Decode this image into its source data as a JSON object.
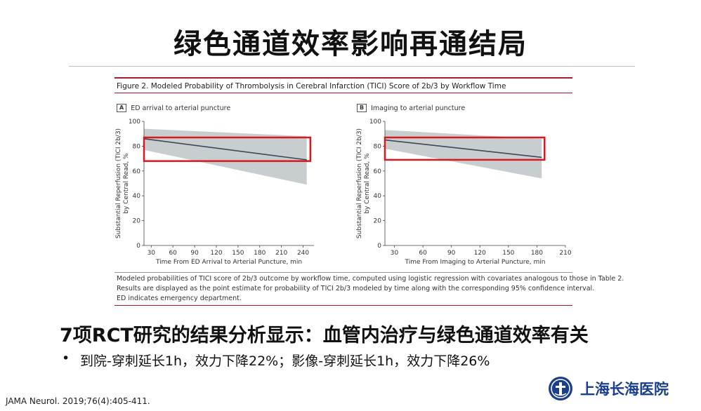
{
  "slide": {
    "title": "绿色通道效率影响再通结局",
    "headline": "7项RCT研究的结果分析显示：血管内治疗与绿色通道效率有关",
    "bullet_marker": "•",
    "bullet": "到院-穿刺延长1h，效力下降22%；影像-穿刺延长1h，效力下降26%",
    "citation": "JAMA Neurol. 2019;76(4):405-411.",
    "hospital_name": "上海长海医院"
  },
  "figure": {
    "caption": "Figure 2. Modeled Probability of Thrombolysis in Cerebral Infarction (TICI) Score of 2b/3 by Workflow Time",
    "notes": [
      "Modeled probabilities of TICI score of 2b/3 outcome by workflow time, computed using logistic regression with covariates analogous to those in Table 2.",
      "Results are displayed as the point estimate for probability of TICI 2b/3 modeled by time along with the corresponding 95% confidence interval.",
      "ED indicates emergency department."
    ]
  },
  "chart_data": [
    {
      "type": "line",
      "panel_letter": "A",
      "panel_title": "ED arrival to arterial puncture",
      "xlabel": "Time From ED Arrival to Arterial Puncture, min",
      "ylabel": "Substantial Reperfusion (TICI 2b/3) by Central Read, %",
      "x_ticks": [
        30,
        60,
        90,
        120,
        150,
        180,
        210,
        240
      ],
      "x_tick_labels": [
        "30",
        "60",
        "90",
        "120",
        "150",
        "180",
        "210",
        "240"
      ],
      "xlim": [
        20,
        255
      ],
      "y_ticks": [
        0,
        20,
        40,
        60,
        80,
        100
      ],
      "ylim": [
        0,
        100
      ],
      "x": [
        20,
        245
      ],
      "y": [
        86,
        69
      ],
      "ci_lower": [
        77,
        49
      ],
      "ci_upper": [
        94,
        88
      ],
      "highlight_box": {
        "x_range": [
          20,
          250
        ],
        "y_range": [
          68,
          87
        ],
        "color": "#d71920"
      },
      "line_color": "#3c4a55",
      "ci_color": "#c8cdd0"
    },
    {
      "type": "line",
      "panel_letter": "B",
      "panel_title": "Imaging to arterial puncture",
      "xlabel": "Time From Imaging to Arterial Puncture, min",
      "ylabel": "Substantial Reperfusion (TICI 2b/3) by Central Read, %",
      "x_ticks": [
        30,
        60,
        90,
        120,
        150,
        180,
        210
      ],
      "x_tick_labels": [
        "30",
        "60",
        "90",
        "120",
        "150",
        "180",
        "210"
      ],
      "xlim": [
        20,
        210
      ],
      "y_ticks": [
        0,
        20,
        40,
        60,
        80,
        100
      ],
      "ylim": [
        0,
        100
      ],
      "x": [
        20,
        185
      ],
      "y": [
        85,
        71
      ],
      "ci_lower": [
        78,
        54
      ],
      "ci_upper": [
        93,
        86
      ],
      "highlight_box": {
        "x_range": [
          20,
          188
        ],
        "y_range": [
          69,
          87
        ],
        "color": "#d71920"
      },
      "line_color": "#3c4a55",
      "ci_color": "#c8cdd0"
    }
  ]
}
